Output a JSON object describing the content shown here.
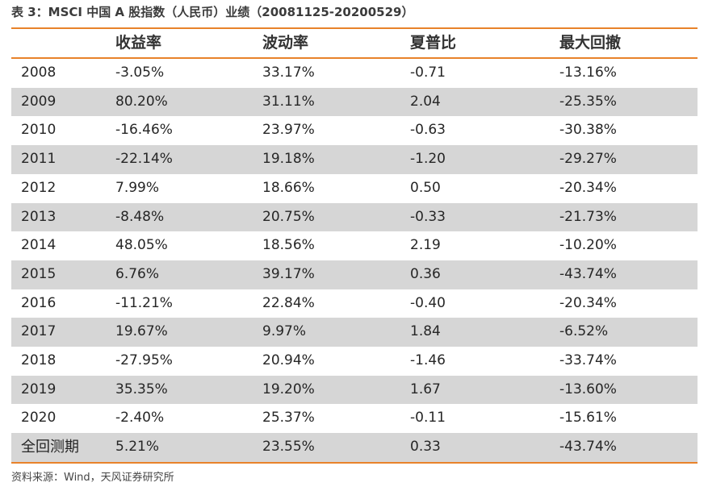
{
  "title": "表 3：MSCI 中国 A 股指数（人民币）业绩（20081125-20200529）",
  "table": {
    "headers": [
      "",
      "收益率",
      "波动率",
      "夏普比",
      "最大回撤"
    ],
    "rows": [
      [
        "2008",
        "-3.05%",
        "33.17%",
        "-0.71",
        "-13.16%"
      ],
      [
        "2009",
        "80.20%",
        "31.11%",
        "2.04",
        "-25.35%"
      ],
      [
        "2010",
        "-16.46%",
        "23.97%",
        "-0.63",
        "-30.38%"
      ],
      [
        "2011",
        "-22.14%",
        "19.18%",
        "-1.20",
        "-29.27%"
      ],
      [
        "2012",
        "7.99%",
        "18.66%",
        "0.50",
        "-20.34%"
      ],
      [
        "2013",
        "-8.48%",
        "20.75%",
        "-0.33",
        "-21.73%"
      ],
      [
        "2014",
        "48.05%",
        "18.56%",
        "2.19",
        "-10.20%"
      ],
      [
        "2015",
        "6.76%",
        "39.17%",
        "0.36",
        "-43.74%"
      ],
      [
        "2016",
        "-11.21%",
        "22.84%",
        "-0.40",
        "-20.34%"
      ],
      [
        "2017",
        "19.67%",
        "9.97%",
        "1.84",
        "-6.52%"
      ],
      [
        "2018",
        "-27.95%",
        "20.94%",
        "-1.46",
        "-33.74%"
      ],
      [
        "2019",
        "35.35%",
        "19.20%",
        "1.67",
        "-13.60%"
      ],
      [
        "2020",
        "-2.40%",
        "25.37%",
        "-0.11",
        "-15.61%"
      ],
      [
        "全回测期",
        "5.21%",
        "23.55%",
        "0.33",
        "-43.74%"
      ]
    ]
  },
  "source": "资料来源：Wind，天风证券研究所",
  "colors": {
    "accent": "#e8822a",
    "shade": "#d6d6d6"
  }
}
